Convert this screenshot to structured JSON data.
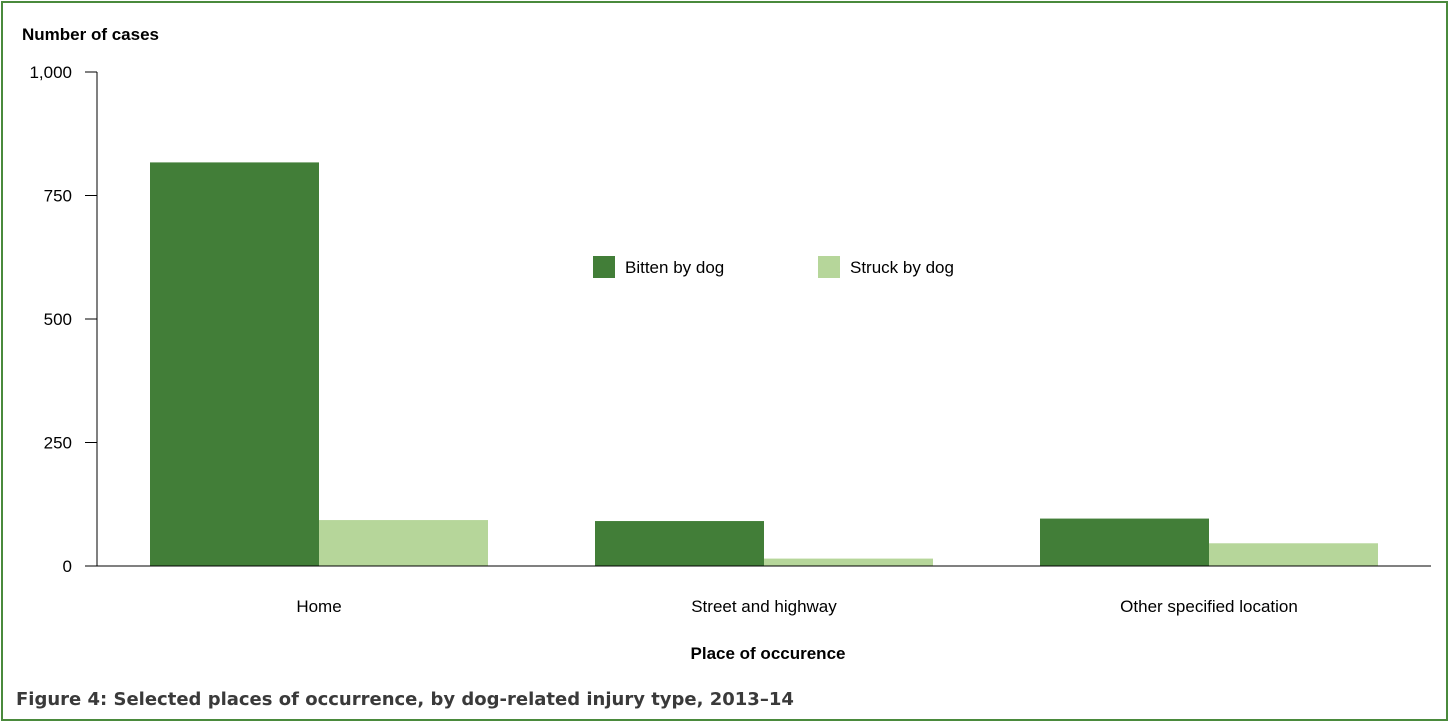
{
  "caption": "Figure 4: Selected places of occurrence, by dog-related injury type, 2013–14",
  "colors": {
    "frame": "#4a8a3c",
    "bitten": "#427e38",
    "struck": "#b6d69a"
  },
  "chart_data": {
    "type": "bar",
    "ylabel": "Number of cases",
    "xlabel": "Place of occurence",
    "ylim": [
      0,
      1000
    ],
    "yticks": [
      0,
      250,
      500,
      750,
      1000
    ],
    "ytick_labels": [
      "0",
      "250",
      "500",
      "750",
      "1,000"
    ],
    "categories": [
      "Home",
      "Street and highway",
      "Other specified location"
    ],
    "series": [
      {
        "name": "Bitten by dog",
        "values": [
          817,
          91,
          96
        ]
      },
      {
        "name": "Struck by dog",
        "values": [
          93,
          15,
          46
        ]
      }
    ],
    "legend_position": "center",
    "grid": false
  }
}
